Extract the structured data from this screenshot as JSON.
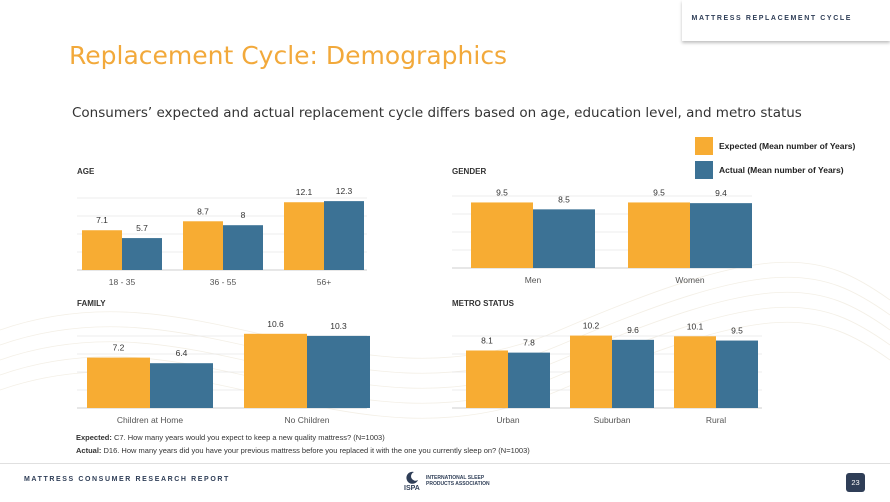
{
  "header": {
    "tag": "MATTRESS REPLACEMENT CYCLE"
  },
  "title": "Replacement Cycle: Demographics",
  "subtitle": "Consumers’ expected and actual replacement cycle differs based on age, education level, and metro status",
  "legend": [
    {
      "label": "Expected (Mean number of Years)",
      "color": "#f7ac33"
    },
    {
      "label": "Actual (Mean number of Years)",
      "color": "#3c7295"
    }
  ],
  "chart_data": [
    {
      "type": "bar",
      "title": "AGE",
      "categories": [
        "18 - 35",
        "36 - 55",
        "56+"
      ],
      "series": [
        {
          "name": "Expected (Mean number of Years)",
          "values": [
            7.1,
            8.7,
            12.1
          ]
        },
        {
          "name": "Actual (Mean number of Years)",
          "values": [
            5.7,
            8,
            12.3
          ]
        }
      ],
      "value_labels": [
        [
          "7.1",
          "8.7",
          "12.1"
        ],
        [
          "5.7",
          "8",
          "12.3"
        ]
      ],
      "grid": true
    },
    {
      "type": "bar",
      "title": "GENDER",
      "categories": [
        "Men",
        "Women"
      ],
      "series": [
        {
          "name": "Expected (Mean number of Years)",
          "values": [
            9.5,
            9.5
          ]
        },
        {
          "name": "Actual (Mean number of Years)",
          "values": [
            8.5,
            9.4
          ]
        }
      ],
      "value_labels": [
        [
          "9.5",
          "9.5"
        ],
        [
          "8.5",
          "9.4"
        ]
      ],
      "grid": true
    },
    {
      "type": "bar",
      "title": "FAMILY",
      "categories": [
        "Children at Home",
        "No Children"
      ],
      "series": [
        {
          "name": "Expected (Mean number of Years)",
          "values": [
            7.2,
            10.6
          ]
        },
        {
          "name": "Actual (Mean number of Years)",
          "values": [
            6.4,
            10.3
          ]
        }
      ],
      "value_labels": [
        [
          "7.2",
          "10.6"
        ],
        [
          "6.4",
          "10.3"
        ]
      ],
      "grid": true
    },
    {
      "type": "bar",
      "title": "METRO STATUS",
      "categories": [
        "Urban",
        "Suburban",
        "Rural"
      ],
      "series": [
        {
          "name": "Expected (Mean number of Years)",
          "values": [
            8.1,
            10.2,
            10.1
          ]
        },
        {
          "name": "Actual (Mean number of Years)",
          "values": [
            7.8,
            9.6,
            9.5
          ]
        }
      ],
      "value_labels": [
        [
          "8.1",
          "10.2",
          "10.1"
        ],
        [
          "7.8",
          "9.6",
          "9.5"
        ]
      ],
      "grid": true
    }
  ],
  "footnotes": {
    "expected_label": "Expected:",
    "expected_text": " C7. How many years would you expect to keep a new quality mattress? (N=1003)",
    "actual_label": "Actual:",
    "actual_text": " D16. How many years did you have your previous mattress before you replaced it with the one you currently sleep on? (N=1003)"
  },
  "footer": {
    "report": "MATTRESS CONSUMER RESEARCH REPORT",
    "logo_mark": "ISPA",
    "logo_text": "INTERNATIONAL SLEEP PRODUCTS ASSOCIATION",
    "page": "23"
  }
}
